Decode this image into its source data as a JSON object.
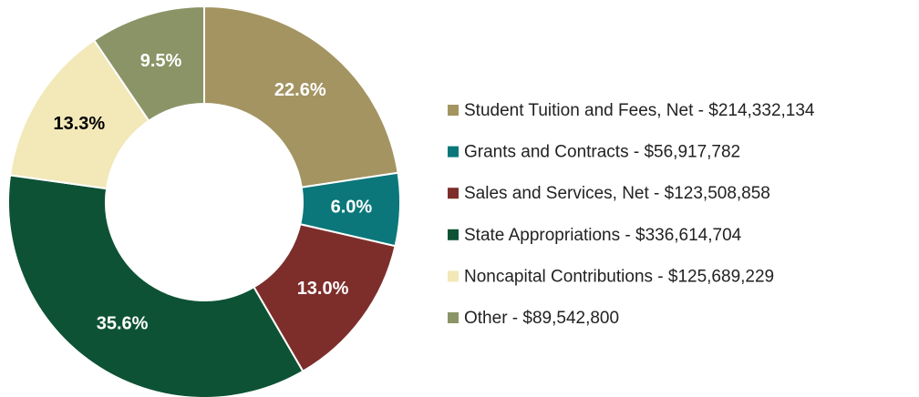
{
  "chart_data": {
    "type": "pie",
    "donut": true,
    "categories": [
      "Student Tuition and Fees, Net - $214,332,134",
      "Grants and Contracts - $56,917,782",
      "Sales and Services, Net - $123,508,858",
      "State Appropriations - $336,614,704",
      "Noncapital Contributions - $125,689,229",
      "Other - $89,542,800"
    ],
    "values": [
      22.6,
      6.0,
      13.0,
      35.6,
      13.3,
      9.5
    ],
    "value_labels": [
      "22.6%",
      "6.0%",
      "13.0%",
      "35.6%",
      "13.3%",
      "9.5%"
    ],
    "colors": [
      "#a39462",
      "#0b777a",
      "#7d2e2b",
      "#0d5235",
      "#f2e8b8",
      "#8a9466"
    ],
    "legend": "right"
  }
}
